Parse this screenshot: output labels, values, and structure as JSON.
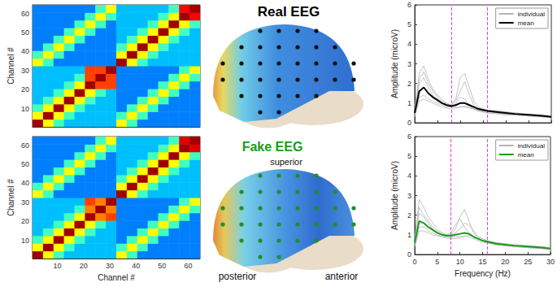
{
  "chart_data": [
    {
      "type": "heatmap",
      "y_label": "Channel #",
      "xlim": [
        0.5,
        64.5
      ],
      "ylim": [
        0.5,
        64.5
      ],
      "xticks": [
        10,
        20,
        30,
        40,
        50,
        60
      ],
      "yticks": [
        10,
        20,
        30,
        40,
        50,
        60
      ],
      "tick_labels": "y",
      "color_range": [
        0,
        1
      ],
      "cell_edges": [
        0.5,
        4.5,
        8.5,
        12.5,
        16.5,
        20.5,
        24.5,
        28.5,
        32.5,
        36.5,
        40.5,
        44.5,
        48.5,
        52.5,
        56.5,
        60.5,
        64.5
      ],
      "cells": [
        [
          0.95,
          0.6,
          0.45,
          0.35,
          0.35,
          0.35,
          0.35,
          0.35,
          0.6,
          0.45,
          0.3,
          0.3,
          0.3,
          0.3,
          0.3,
          0.3
        ],
        [
          0.6,
          0.95,
          0.6,
          0.45,
          0.35,
          0.35,
          0.35,
          0.35,
          0.45,
          0.6,
          0.45,
          0.3,
          0.3,
          0.3,
          0.3,
          0.3
        ],
        [
          0.45,
          0.6,
          0.95,
          0.6,
          0.45,
          0.35,
          0.35,
          0.35,
          0.3,
          0.45,
          0.6,
          0.45,
          0.3,
          0.3,
          0.3,
          0.3
        ],
        [
          0.35,
          0.45,
          0.6,
          0.95,
          0.6,
          0.45,
          0.35,
          0.35,
          0.3,
          0.3,
          0.45,
          0.6,
          0.45,
          0.3,
          0.3,
          0.3
        ],
        [
          0.35,
          0.35,
          0.45,
          0.6,
          0.95,
          0.6,
          0.45,
          0.35,
          0.3,
          0.3,
          0.3,
          0.45,
          0.6,
          0.45,
          0.3,
          0.3
        ],
        [
          0.35,
          0.35,
          0.35,
          0.45,
          0.6,
          0.95,
          0.75,
          0.75,
          0.3,
          0.3,
          0.3,
          0.3,
          0.45,
          0.6,
          0.45,
          0.3
        ],
        [
          0.35,
          0.35,
          0.35,
          0.35,
          0.45,
          0.75,
          0.95,
          0.75,
          0.3,
          0.3,
          0.3,
          0.3,
          0.3,
          0.45,
          0.6,
          0.45
        ],
        [
          0.35,
          0.35,
          0.35,
          0.35,
          0.35,
          0.75,
          0.75,
          0.95,
          0.3,
          0.3,
          0.3,
          0.3,
          0.3,
          0.3,
          0.45,
          0.6
        ],
        [
          0.6,
          0.45,
          0.3,
          0.3,
          0.3,
          0.3,
          0.3,
          0.3,
          0.95,
          0.6,
          0.45,
          0.35,
          0.35,
          0.35,
          0.35,
          0.35
        ],
        [
          0.45,
          0.6,
          0.45,
          0.3,
          0.3,
          0.3,
          0.3,
          0.3,
          0.6,
          0.95,
          0.6,
          0.45,
          0.35,
          0.35,
          0.35,
          0.35
        ],
        [
          0.3,
          0.45,
          0.6,
          0.45,
          0.3,
          0.3,
          0.3,
          0.3,
          0.45,
          0.6,
          0.95,
          0.6,
          0.45,
          0.35,
          0.35,
          0.35
        ],
        [
          0.3,
          0.3,
          0.45,
          0.6,
          0.45,
          0.3,
          0.3,
          0.3,
          0.35,
          0.45,
          0.6,
          0.95,
          0.6,
          0.45,
          0.35,
          0.35
        ],
        [
          0.3,
          0.3,
          0.3,
          0.45,
          0.6,
          0.45,
          0.3,
          0.3,
          0.35,
          0.35,
          0.45,
          0.6,
          0.95,
          0.6,
          0.45,
          0.35
        ],
        [
          0.3,
          0.3,
          0.3,
          0.3,
          0.45,
          0.6,
          0.45,
          0.3,
          0.35,
          0.35,
          0.35,
          0.45,
          0.6,
          0.95,
          0.6,
          0.45
        ],
        [
          0.3,
          0.3,
          0.3,
          0.3,
          0.3,
          0.45,
          0.6,
          0.45,
          0.35,
          0.35,
          0.35,
          0.35,
          0.45,
          0.6,
          0.95,
          0.8
        ],
        [
          0.3,
          0.3,
          0.3,
          0.3,
          0.3,
          0.3,
          0.45,
          0.6,
          0.35,
          0.35,
          0.35,
          0.35,
          0.35,
          0.45,
          0.8,
          0.95
        ]
      ]
    },
    {
      "type": "heatmap",
      "x_label": "Channel #",
      "y_label": "Channel #",
      "xlim": [
        0.5,
        64.5
      ],
      "ylim": [
        0.5,
        64.5
      ],
      "xticks": [
        10,
        20,
        30,
        40,
        50,
        60
      ],
      "yticks": [
        10,
        20,
        30,
        40,
        50,
        60
      ],
      "color_range": [
        0,
        1
      ],
      "cell_edges": [
        0.5,
        4.5,
        8.5,
        12.5,
        16.5,
        20.5,
        24.5,
        28.5,
        32.5,
        36.5,
        40.5,
        44.5,
        48.5,
        52.5,
        56.5,
        60.5,
        64.5
      ],
      "cells": [
        [
          0.95,
          0.6,
          0.45,
          0.35,
          0.35,
          0.35,
          0.35,
          0.35,
          0.6,
          0.45,
          0.3,
          0.3,
          0.3,
          0.3,
          0.3,
          0.3
        ],
        [
          0.6,
          0.95,
          0.6,
          0.45,
          0.35,
          0.35,
          0.35,
          0.35,
          0.45,
          0.6,
          0.45,
          0.3,
          0.3,
          0.3,
          0.3,
          0.3
        ],
        [
          0.45,
          0.6,
          0.95,
          0.6,
          0.45,
          0.35,
          0.35,
          0.35,
          0.3,
          0.45,
          0.6,
          0.45,
          0.3,
          0.3,
          0.3,
          0.3
        ],
        [
          0.35,
          0.45,
          0.6,
          0.95,
          0.6,
          0.45,
          0.35,
          0.35,
          0.3,
          0.3,
          0.45,
          0.6,
          0.45,
          0.3,
          0.3,
          0.3
        ],
        [
          0.35,
          0.35,
          0.45,
          0.6,
          0.95,
          0.6,
          0.45,
          0.35,
          0.3,
          0.3,
          0.3,
          0.45,
          0.6,
          0.45,
          0.3,
          0.3
        ],
        [
          0.35,
          0.35,
          0.35,
          0.45,
          0.6,
          0.95,
          0.7,
          0.75,
          0.3,
          0.3,
          0.3,
          0.3,
          0.45,
          0.6,
          0.45,
          0.3
        ],
        [
          0.35,
          0.35,
          0.35,
          0.35,
          0.45,
          0.7,
          0.95,
          0.7,
          0.3,
          0.3,
          0.3,
          0.3,
          0.3,
          0.45,
          0.6,
          0.45
        ],
        [
          0.35,
          0.35,
          0.35,
          0.35,
          0.35,
          0.75,
          0.7,
          0.95,
          0.3,
          0.3,
          0.3,
          0.3,
          0.3,
          0.3,
          0.45,
          0.6
        ],
        [
          0.6,
          0.45,
          0.3,
          0.3,
          0.3,
          0.3,
          0.3,
          0.3,
          0.95,
          0.6,
          0.45,
          0.35,
          0.35,
          0.35,
          0.35,
          0.35
        ],
        [
          0.45,
          0.6,
          0.45,
          0.3,
          0.3,
          0.3,
          0.3,
          0.3,
          0.6,
          0.95,
          0.6,
          0.45,
          0.35,
          0.35,
          0.35,
          0.35
        ],
        [
          0.3,
          0.45,
          0.6,
          0.45,
          0.3,
          0.3,
          0.3,
          0.3,
          0.45,
          0.6,
          0.95,
          0.6,
          0.45,
          0.35,
          0.35,
          0.35
        ],
        [
          0.3,
          0.3,
          0.45,
          0.6,
          0.45,
          0.3,
          0.3,
          0.3,
          0.35,
          0.45,
          0.6,
          0.95,
          0.6,
          0.45,
          0.35,
          0.35
        ],
        [
          0.3,
          0.3,
          0.3,
          0.45,
          0.6,
          0.45,
          0.3,
          0.3,
          0.35,
          0.35,
          0.45,
          0.6,
          0.95,
          0.6,
          0.45,
          0.35
        ],
        [
          0.3,
          0.3,
          0.3,
          0.3,
          0.45,
          0.6,
          0.45,
          0.3,
          0.35,
          0.35,
          0.35,
          0.45,
          0.6,
          0.95,
          0.6,
          0.45
        ],
        [
          0.3,
          0.3,
          0.3,
          0.3,
          0.3,
          0.45,
          0.6,
          0.45,
          0.35,
          0.35,
          0.35,
          0.35,
          0.45,
          0.6,
          0.95,
          0.85
        ],
        [
          0.3,
          0.3,
          0.3,
          0.3,
          0.3,
          0.3,
          0.45,
          0.6,
          0.35,
          0.35,
          0.35,
          0.35,
          0.35,
          0.45,
          0.85,
          0.95
        ]
      ]
    },
    {
      "type": "line",
      "y_label": "Amplitude (microV)",
      "tick_labels": "y",
      "legend": "upper right",
      "x": [
        0,
        1,
        2,
        3,
        4,
        5,
        6,
        7,
        8,
        9,
        10,
        11,
        12,
        13,
        14,
        15,
        16,
        18,
        20,
        22,
        25,
        28,
        30
      ],
      "xlim": [
        0,
        30
      ],
      "xticks": [
        0,
        5,
        10,
        15,
        20,
        25,
        30
      ],
      "ylim": [
        0,
        6
      ],
      "yticks": [
        0,
        1,
        2,
        3,
        4,
        5,
        6
      ],
      "vlines": {
        "values": [
          8,
          16
        ],
        "color": "#e040e0",
        "line_style": "dashed"
      },
      "series": [
        {
          "name": "individual",
          "color": "#b4b4b4",
          "values": [
            0.6,
            2.2,
            2.6,
            2.0,
            1.6,
            1.3,
            1.1,
            0.95,
            0.9,
            1.1,
            1.6,
            2.1,
            1.4,
            0.9,
            0.75,
            0.7,
            0.65,
            0.6,
            0.55,
            0.5,
            0.45,
            0.4,
            0.35
          ]
        },
        {
          "name": "individual",
          "color": "#b4b4b4",
          "values": [
            0.4,
            1.3,
            1.4,
            1.2,
            1.1,
            1.0,
            0.9,
            0.8,
            0.8,
            1.0,
            1.3,
            1.2,
            0.9,
            0.7,
            0.6,
            0.55,
            0.5,
            0.5,
            0.45,
            0.4,
            0.35,
            0.3,
            0.3
          ]
        },
        {
          "name": "individual",
          "color": "#b4b4b4",
          "values": [
            0.5,
            2.0,
            2.3,
            1.8,
            1.4,
            1.2,
            1.0,
            0.9,
            0.8,
            0.8,
            0.8,
            0.8,
            0.75,
            0.7,
            0.65,
            0.6,
            0.6,
            0.5,
            0.5,
            0.45,
            0.4,
            0.35,
            0.3
          ]
        },
        {
          "name": "individual",
          "color": "#b4b4b4",
          "values": [
            0.7,
            2.5,
            2.9,
            2.2,
            1.7,
            1.4,
            1.2,
            1.0,
            0.9,
            1.2,
            2.3,
            2.5,
            1.8,
            1.1,
            0.8,
            0.7,
            0.65,
            0.6,
            0.55,
            0.5,
            0.4,
            0.35,
            0.3
          ]
        },
        {
          "name": "individual",
          "color": "#b4b4b4",
          "values": [
            0.3,
            1.1,
            1.2,
            1.1,
            1.0,
            0.9,
            0.8,
            0.75,
            0.7,
            0.75,
            0.8,
            0.85,
            0.8,
            0.7,
            0.6,
            0.55,
            0.5,
            0.45,
            0.4,
            0.4,
            0.35,
            0.3,
            0.25
          ]
        },
        {
          "name": "mean",
          "color": "#000000",
          "values": [
            0.5,
            1.6,
            1.8,
            1.5,
            1.3,
            1.15,
            1.0,
            0.9,
            0.85,
            0.9,
            1.0,
            1.0,
            0.9,
            0.8,
            0.7,
            0.65,
            0.6,
            0.55,
            0.5,
            0.45,
            0.4,
            0.35,
            0.3
          ]
        }
      ]
    },
    {
      "type": "line",
      "x_label": "Frequency (Hz)",
      "y_label": "Amplitude (microV)",
      "legend": "upper right",
      "x": [
        0,
        1,
        2,
        3,
        4,
        5,
        6,
        7,
        8,
        9,
        10,
        11,
        12,
        13,
        14,
        15,
        16,
        18,
        20,
        22,
        25,
        28,
        30
      ],
      "xlim": [
        0,
        30
      ],
      "xticks": [
        0,
        5,
        10,
        15,
        20,
        25,
        30
      ],
      "ylim": [
        0,
        6
      ],
      "yticks": [
        0,
        1,
        2,
        3,
        4,
        5,
        6
      ],
      "vlines": {
        "values": [
          8,
          16
        ],
        "color": "#e040e0",
        "line_style": "dashed"
      },
      "series": [
        {
          "name": "individual",
          "color": "#b4b4b4",
          "values": [
            0.8,
            2.8,
            2.4,
            1.9,
            1.6,
            1.3,
            1.1,
            1.0,
            1.0,
            1.3,
            1.9,
            2.3,
            1.7,
            1.1,
            0.9,
            0.8,
            0.7,
            0.6,
            0.55,
            0.5,
            0.45,
            0.4,
            0.35
          ]
        },
        {
          "name": "individual",
          "color": "#b4b4b4",
          "values": [
            0.5,
            1.4,
            1.4,
            1.2,
            1.1,
            1.0,
            0.9,
            0.85,
            0.85,
            0.9,
            0.9,
            0.95,
            0.9,
            0.8,
            0.7,
            0.6,
            0.6,
            0.5,
            0.45,
            0.4,
            0.35,
            0.3,
            0.3
          ]
        },
        {
          "name": "individual",
          "color": "#b4b4b4",
          "values": [
            0.6,
            2.1,
            1.9,
            1.6,
            1.3,
            1.1,
            1.0,
            1.0,
            1.1,
            1.5,
            1.8,
            1.4,
            1.1,
            0.9,
            0.8,
            0.7,
            0.65,
            0.55,
            0.5,
            0.45,
            0.4,
            0.35,
            0.3
          ]
        },
        {
          "name": "individual",
          "color": "#b4b4b4",
          "values": [
            0.4,
            1.2,
            1.2,
            1.1,
            1.0,
            0.95,
            0.9,
            0.85,
            0.8,
            0.8,
            0.85,
            0.9,
            1.0,
            0.9,
            0.8,
            0.7,
            0.6,
            0.5,
            0.45,
            0.4,
            0.35,
            0.3,
            0.25
          ]
        },
        {
          "name": "individual",
          "color": "#b4b4b4",
          "values": [
            0.7,
            2.4,
            2.0,
            1.7,
            1.4,
            1.2,
            1.1,
            1.0,
            1.0,
            1.1,
            1.3,
            1.6,
            1.5,
            1.2,
            0.9,
            0.8,
            0.7,
            0.6,
            0.5,
            0.45,
            0.4,
            0.35,
            0.3
          ]
        },
        {
          "name": "mean",
          "color": "#1a9a1a",
          "values": [
            0.6,
            1.7,
            1.6,
            1.4,
            1.25,
            1.1,
            1.0,
            0.95,
            0.95,
            1.0,
            1.05,
            1.1,
            1.05,
            0.9,
            0.8,
            0.7,
            0.65,
            0.55,
            0.5,
            0.45,
            0.4,
            0.35,
            0.3
          ]
        }
      ]
    }
  ],
  "diagram": {
    "real": {
      "title": "Real EEG",
      "color": "#000000"
    },
    "fake": {
      "title": "Fake EEG",
      "color": "#1a9a1a"
    },
    "direction_labels": {
      "superior": "superior",
      "posterior": "posterior",
      "anterior": "anterior"
    }
  }
}
